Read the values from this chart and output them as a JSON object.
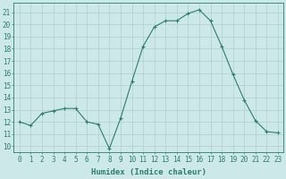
{
  "x": [
    0,
    1,
    2,
    3,
    4,
    5,
    6,
    7,
    8,
    9,
    10,
    11,
    12,
    13,
    14,
    15,
    16,
    17,
    18,
    19,
    20,
    21,
    22,
    23
  ],
  "y": [
    12,
    11.7,
    12.7,
    12.9,
    13.1,
    13.1,
    12,
    11.8,
    9.8,
    12.3,
    15.3,
    18.2,
    19.8,
    20.3,
    20.3,
    20.9,
    21.2,
    20.3,
    18.2,
    15.9,
    13.8,
    12.1,
    11.2,
    11.1
  ],
  "line_color": "#2d7d6f",
  "marker_color": "#2d7d6f",
  "bg_color": "#cce8e8",
  "grid_color": "#aecfcf",
  "xlabel": "Humidex (Indice chaleur)",
  "ylabel_ticks": [
    10,
    11,
    12,
    13,
    14,
    15,
    16,
    17,
    18,
    19,
    20,
    21
  ],
  "ylim": [
    9.5,
    21.8
  ],
  "xlim": [
    -0.5,
    23.5
  ],
  "label_fontsize": 6.5,
  "tick_fontsize": 5.5
}
